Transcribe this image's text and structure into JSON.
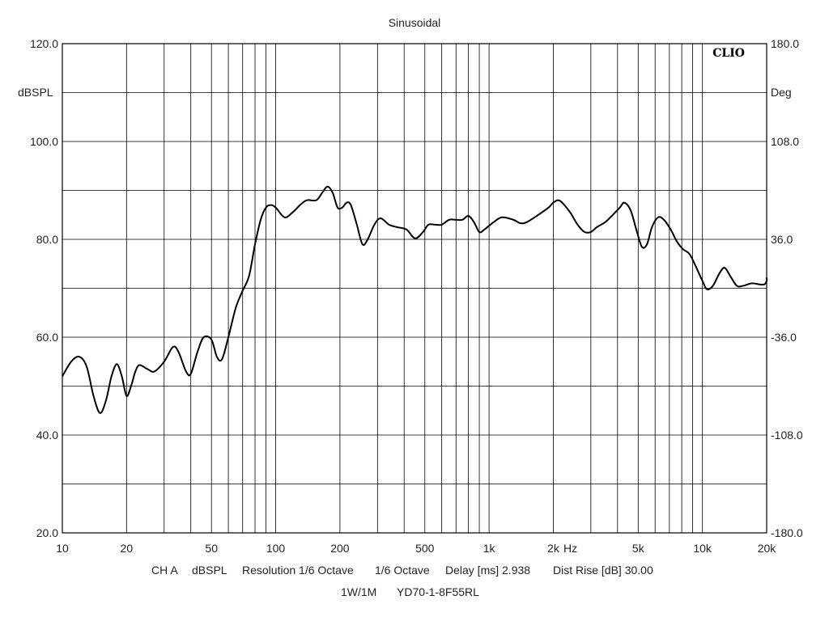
{
  "chart_data": {
    "type": "line",
    "title": "Sinusoidal",
    "brand": "CLIO",
    "xscale": "log",
    "xlim": [
      10,
      20000
    ],
    "xticks": [
      {
        "v": 10,
        "label": "10"
      },
      {
        "v": 20,
        "label": "20"
      },
      {
        "v": 50,
        "label": "50"
      },
      {
        "v": 100,
        "label": "100"
      },
      {
        "v": 200,
        "label": "200"
      },
      {
        "v": 500,
        "label": "500"
      },
      {
        "v": 1000,
        "label": "1k"
      },
      {
        "v": 2000,
        "label": "2k"
      },
      {
        "v": 5000,
        "label": "5k"
      },
      {
        "v": 10000,
        "label": "10k"
      },
      {
        "v": 20000,
        "label": "20k"
      }
    ],
    "xunit": "Hz",
    "ylim": [
      20,
      120
    ],
    "ylabel": "dBSPL",
    "yticks": [
      {
        "v": 120,
        "label": "120.0"
      },
      {
        "v": 100,
        "label": "100.0"
      },
      {
        "v": 80,
        "label": "80.0"
      },
      {
        "v": 60,
        "label": "60.0"
      },
      {
        "v": 40,
        "label": "40.0"
      },
      {
        "v": 20,
        "label": "20.0"
      }
    ],
    "ygrid": [
      120,
      110,
      100,
      90,
      80,
      70,
      60,
      50,
      40,
      30,
      20
    ],
    "y2lim": [
      -180,
      180
    ],
    "y2label": "Deg",
    "y2ticks": [
      {
        "v": 180,
        "label": "180.0"
      },
      {
        "v": 108,
        "label": "108.0"
      },
      {
        "v": 36,
        "label": "36.0"
      },
      {
        "v": -36,
        "label": "-36.0"
      },
      {
        "v": -108,
        "label": "-108.0"
      },
      {
        "v": -180,
        "label": "-180.0"
      }
    ],
    "grid": true,
    "series": [
      {
        "color": "#000000",
        "points": [
          [
            10,
            52
          ],
          [
            11,
            55
          ],
          [
            12,
            56
          ],
          [
            13,
            54
          ],
          [
            14,
            48
          ],
          [
            15,
            44.5
          ],
          [
            16,
            47
          ],
          [
            17,
            52
          ],
          [
            18,
            54.5
          ],
          [
            19,
            52
          ],
          [
            20,
            48
          ],
          [
            21,
            50
          ],
          [
            22,
            53
          ],
          [
            23,
            54.3
          ],
          [
            25,
            53.5
          ],
          [
            27,
            53
          ],
          [
            30,
            55
          ],
          [
            33,
            58
          ],
          [
            35,
            57
          ],
          [
            38,
            53
          ],
          [
            40,
            52.5
          ],
          [
            43,
            57
          ],
          [
            46,
            60
          ],
          [
            50,
            59.5
          ],
          [
            53,
            56
          ],
          [
            56,
            55.5
          ],
          [
            60,
            60
          ],
          [
            65,
            66
          ],
          [
            70,
            69.5
          ],
          [
            75,
            72.5
          ],
          [
            80,
            79
          ],
          [
            85,
            84
          ],
          [
            90,
            86.5
          ],
          [
            95,
            87
          ],
          [
            100,
            86.5
          ],
          [
            110,
            84.5
          ],
          [
            120,
            85.5
          ],
          [
            130,
            87
          ],
          [
            140,
            88
          ],
          [
            155,
            88
          ],
          [
            165,
            89.5
          ],
          [
            175,
            90.8
          ],
          [
            185,
            89.5
          ],
          [
            195,
            86.5
          ],
          [
            205,
            86.5
          ],
          [
            215,
            87.5
          ],
          [
            225,
            87
          ],
          [
            240,
            83
          ],
          [
            255,
            79
          ],
          [
            270,
            80
          ],
          [
            290,
            83
          ],
          [
            310,
            84.3
          ],
          [
            340,
            83
          ],
          [
            370,
            82.5
          ],
          [
            410,
            82
          ],
          [
            450,
            80.2
          ],
          [
            490,
            81.5
          ],
          [
            520,
            83
          ],
          [
            560,
            83
          ],
          [
            600,
            83
          ],
          [
            650,
            84
          ],
          [
            700,
            84
          ],
          [
            750,
            84
          ],
          [
            800,
            84.8
          ],
          [
            850,
            83.5
          ],
          [
            900,
            81.5
          ],
          [
            950,
            82
          ],
          [
            1050,
            83.5
          ],
          [
            1150,
            84.5
          ],
          [
            1300,
            84
          ],
          [
            1400,
            83.3
          ],
          [
            1500,
            83.5
          ],
          [
            1700,
            85
          ],
          [
            1900,
            86.5
          ],
          [
            2000,
            87.5
          ],
          [
            2100,
            88
          ],
          [
            2200,
            87.5
          ],
          [
            2400,
            85.5
          ],
          [
            2600,
            83
          ],
          [
            2800,
            81.5
          ],
          [
            3000,
            81.5
          ],
          [
            3200,
            82.5
          ],
          [
            3500,
            83.5
          ],
          [
            3800,
            85
          ],
          [
            4100,
            86.5
          ],
          [
            4300,
            87.5
          ],
          [
            4600,
            86
          ],
          [
            4900,
            82
          ],
          [
            5200,
            78.5
          ],
          [
            5500,
            79
          ],
          [
            5800,
            82.5
          ],
          [
            6200,
            84.5
          ],
          [
            6600,
            84
          ],
          [
            7100,
            82
          ],
          [
            7600,
            79.5
          ],
          [
            8100,
            78
          ],
          [
            8700,
            77
          ],
          [
            9300,
            74.5
          ],
          [
            10000,
            71.5
          ],
          [
            10500,
            69.8
          ],
          [
            11200,
            70.5
          ],
          [
            12000,
            73
          ],
          [
            12700,
            74.2
          ],
          [
            13500,
            72.5
          ],
          [
            14500,
            70.5
          ],
          [
            15500,
            70.5
          ],
          [
            17000,
            71
          ],
          [
            18500,
            70.8
          ],
          [
            19500,
            70.8
          ],
          [
            20000,
            71.5
          ],
          [
            21000,
            72.2
          ]
        ]
      }
    ],
    "footer": {
      "line1": [
        "CH A",
        "dBSPL",
        "Resolution 1/6 Octave",
        "1/6 Octave",
        "Delay [ms] 2.938",
        "Dist Rise [dB] 30.00"
      ],
      "line2": [
        "1W/1M",
        "YD70-1-8F55RL"
      ]
    }
  }
}
